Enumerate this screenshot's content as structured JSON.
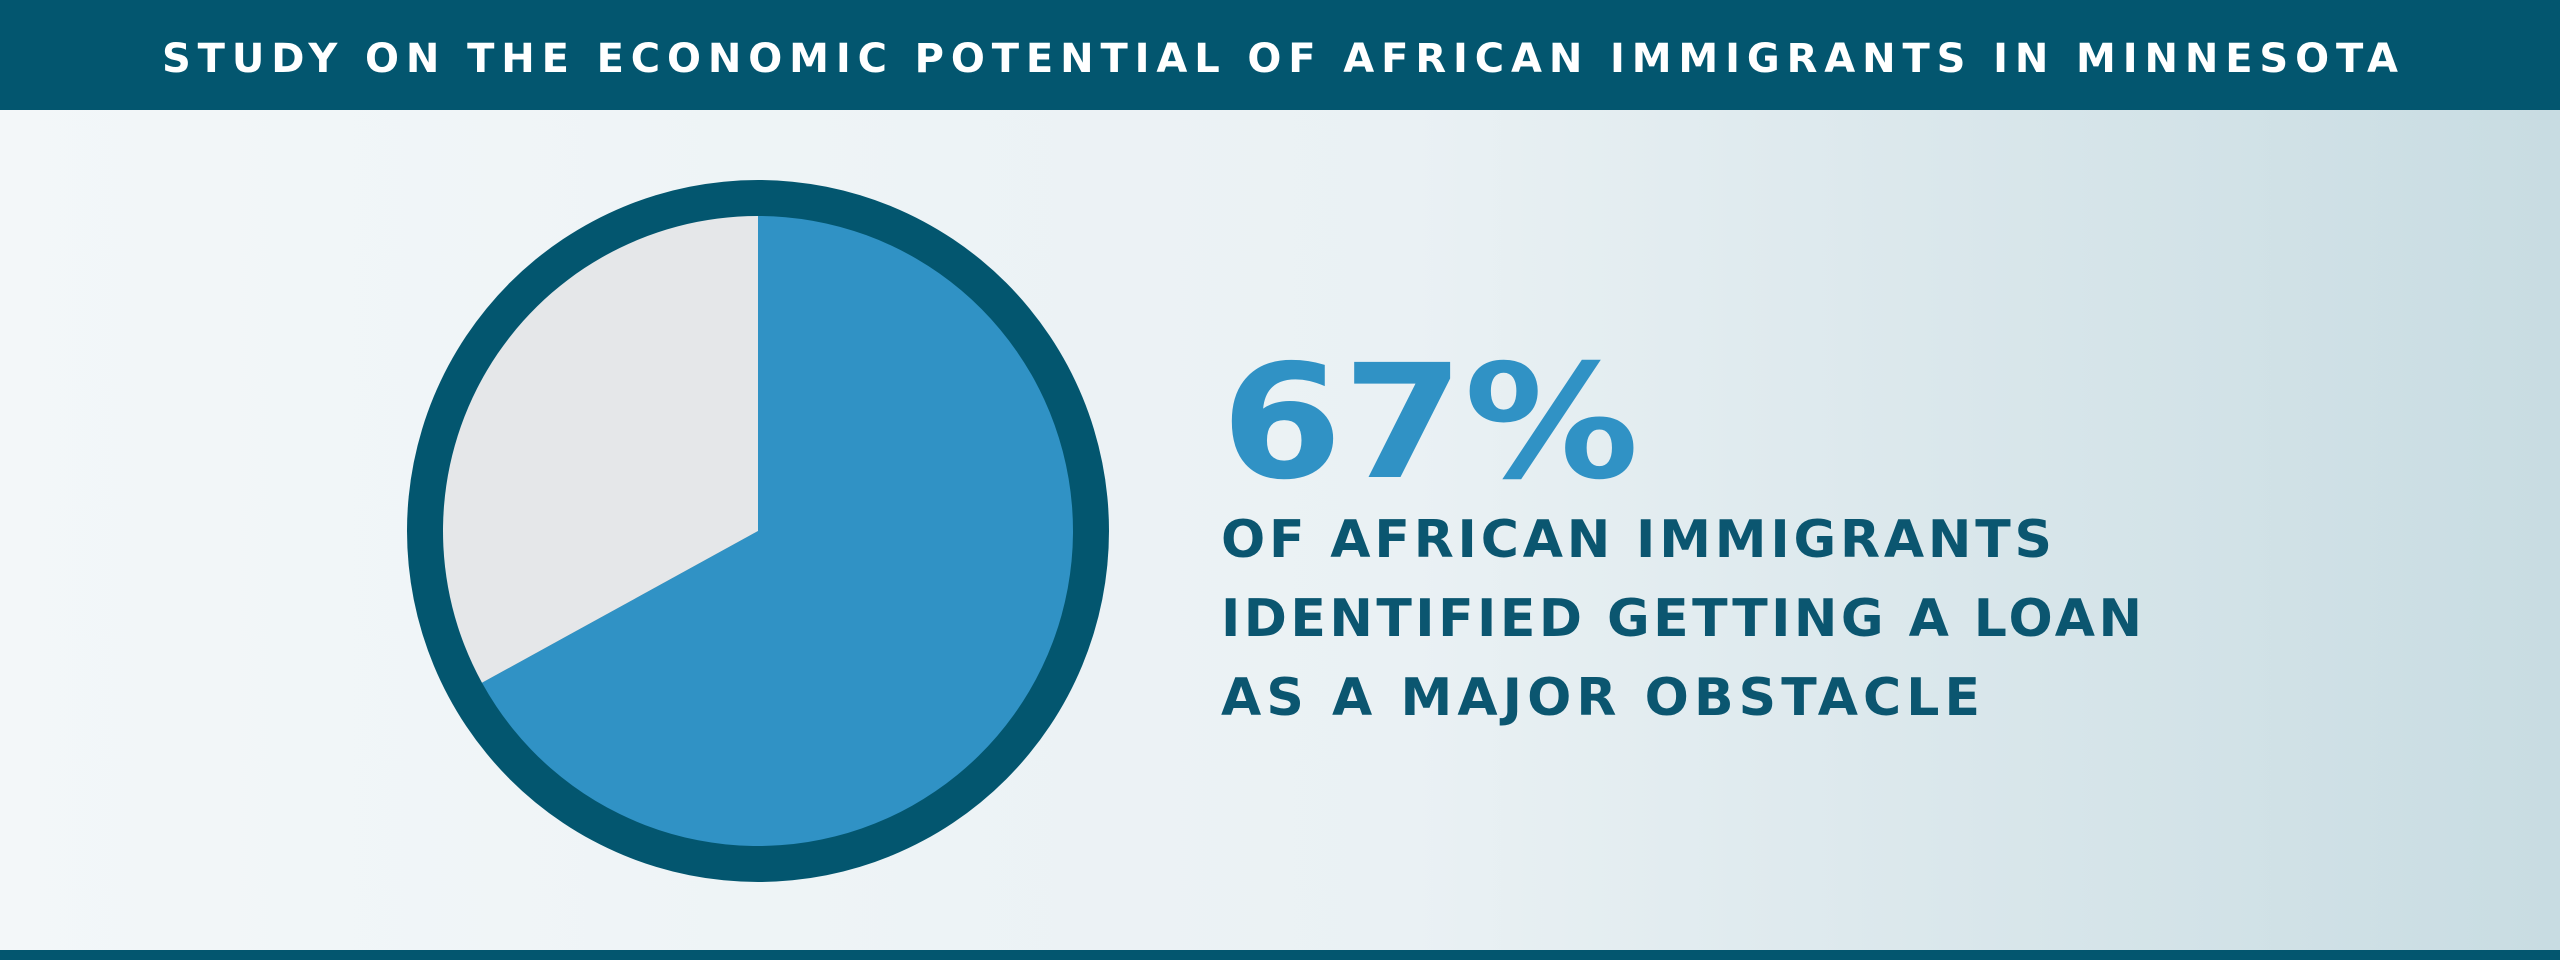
{
  "chart_data": {
    "type": "pie",
    "title": "STUDY ON THE ECONOMIC POTENTIAL OF AFRICAN IMMIGRANTS IN MINNESOTA",
    "values": [
      67,
      33
    ],
    "value_labels": [
      "67%",
      null
    ],
    "colors": [
      "#3092c5",
      "#e5e7e9"
    ],
    "annotation_lines": [
      "OF AFRICAN IMMIGRANTS",
      "IDENTIFIED GETTING A LOAN",
      "AS A MAJOR OBSTACLE"
    ]
  }
}
